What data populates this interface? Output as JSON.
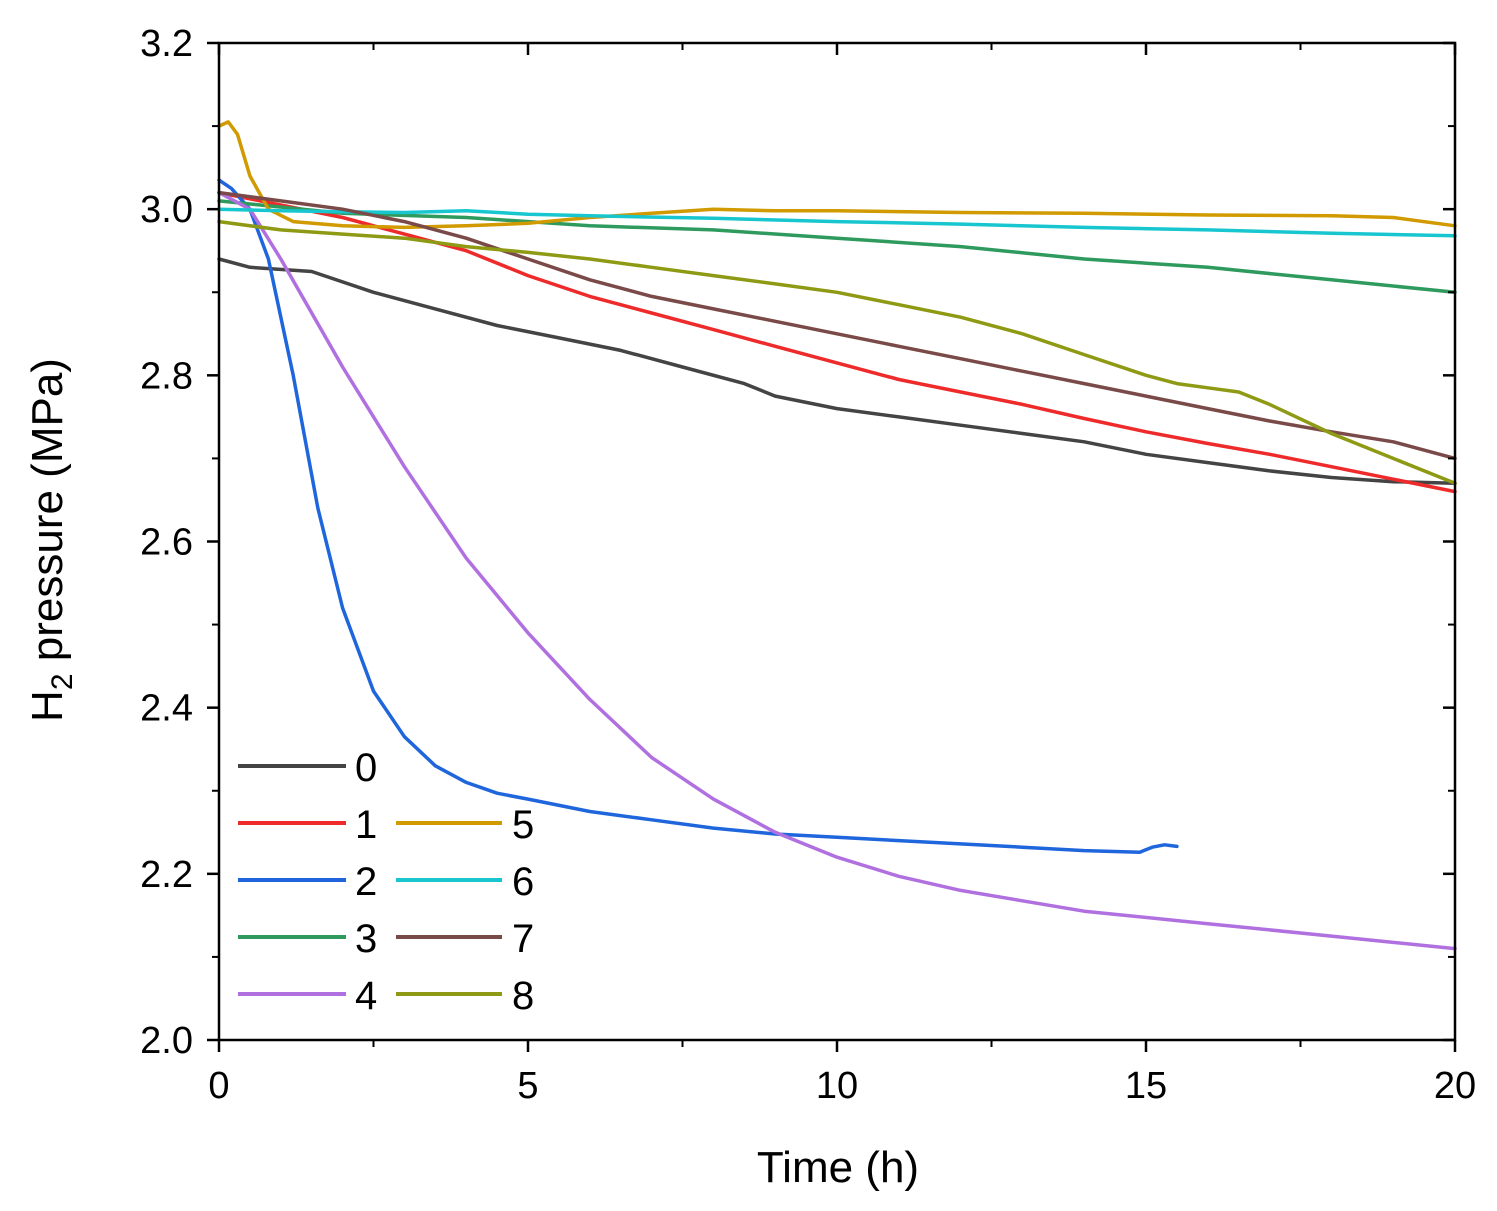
{
  "chart_data": {
    "type": "line",
    "xlabel": "Time (h)",
    "ylabel_main": "H",
    "ylabel_sub": "2",
    "ylabel_rest": " pressure (MPa)",
    "xlim": [
      0,
      20
    ],
    "ylim": [
      2.0,
      3.2
    ],
    "x_ticks": [
      0,
      5,
      10,
      15,
      20
    ],
    "x_tick_labels": [
      "0",
      "5",
      "10",
      "15",
      "20"
    ],
    "y_ticks": [
      2.0,
      2.2,
      2.4,
      2.6,
      2.8,
      3.0,
      3.2
    ],
    "y_tick_labels": [
      "2.0",
      "2.2",
      "2.4",
      "2.6",
      "2.8",
      "3.0",
      "3.2"
    ],
    "grid": false,
    "legend_position": "bottom-left",
    "series": [
      {
        "name": "0",
        "color": "#444444",
        "x": [
          0,
          0.5,
          1.5,
          2.5,
          3.5,
          4.5,
          5.5,
          6.5,
          7.5,
          8.5,
          9,
          10,
          11,
          12,
          13,
          14,
          15,
          16,
          17,
          18,
          19,
          20
        ],
        "y": [
          2.94,
          2.93,
          2.925,
          2.9,
          2.88,
          2.86,
          2.845,
          2.83,
          2.81,
          2.79,
          2.775,
          2.76,
          2.75,
          2.74,
          2.73,
          2.72,
          2.705,
          2.695,
          2.685,
          2.677,
          2.672,
          2.67
        ]
      },
      {
        "name": "1",
        "color": "#ee2a2a",
        "x": [
          0,
          1,
          2,
          3,
          4,
          5,
          6,
          7,
          8,
          9,
          10,
          11,
          12,
          13,
          14,
          15,
          16,
          17,
          18,
          19,
          20
        ],
        "y": [
          3.02,
          3.005,
          2.99,
          2.97,
          2.95,
          2.92,
          2.895,
          2.875,
          2.855,
          2.835,
          2.815,
          2.795,
          2.78,
          2.765,
          2.748,
          2.732,
          2.718,
          2.705,
          2.69,
          2.675,
          2.66
        ]
      },
      {
        "name": "2",
        "color": "#1f66dd",
        "x": [
          0,
          0.2,
          0.5,
          0.8,
          1.2,
          1.6,
          2.0,
          2.5,
          3.0,
          3.5,
          4.0,
          4.5,
          5.0,
          6.0,
          7.0,
          8.0,
          9.0,
          10.0,
          11.0,
          12.0,
          13.0,
          14.0,
          14.9,
          15.1,
          15.3,
          15.5
        ],
        "y": [
          3.035,
          3.025,
          3.0,
          2.94,
          2.8,
          2.64,
          2.52,
          2.42,
          2.365,
          2.33,
          2.31,
          2.297,
          2.29,
          2.275,
          2.265,
          2.255,
          2.248,
          2.244,
          2.24,
          2.236,
          2.232,
          2.228,
          2.226,
          2.232,
          2.235,
          2.233
        ]
      },
      {
        "name": "3",
        "color": "#2e9a5e",
        "x": [
          0,
          2,
          4,
          6,
          8,
          10,
          12,
          14,
          16,
          18,
          20
        ],
        "y": [
          3.01,
          2.995,
          2.99,
          2.98,
          2.975,
          2.965,
          2.955,
          2.94,
          2.93,
          2.915,
          2.9
        ]
      },
      {
        "name": "4",
        "color": "#b070e0",
        "x": [
          0,
          0.5,
          1,
          2,
          3,
          4,
          5,
          6,
          7,
          8,
          9,
          10,
          11,
          12,
          14,
          16,
          18,
          20
        ],
        "y": [
          3.02,
          3.0,
          2.94,
          2.81,
          2.69,
          2.58,
          2.49,
          2.41,
          2.34,
          2.29,
          2.25,
          2.22,
          2.197,
          2.18,
          2.155,
          2.14,
          2.125,
          2.11
        ]
      },
      {
        "name": "5",
        "color": "#d19a00",
        "x": [
          0,
          0.15,
          0.3,
          0.5,
          0.8,
          1.2,
          2,
          3,
          4,
          5,
          6,
          7,
          8,
          9,
          10,
          12,
          14,
          16,
          18,
          19,
          20
        ],
        "y": [
          3.1,
          3.105,
          3.09,
          3.04,
          3.0,
          2.985,
          2.98,
          2.978,
          2.98,
          2.983,
          2.99,
          2.995,
          3.0,
          2.998,
          2.998,
          2.996,
          2.995,
          2.993,
          2.992,
          2.99,
          2.98
        ]
      },
      {
        "name": "6",
        "color": "#17c6cf",
        "x": [
          0,
          1,
          2,
          3,
          4,
          5,
          6,
          8,
          10,
          12,
          14,
          16,
          18,
          20
        ],
        "y": [
          3.0,
          2.998,
          2.997,
          2.996,
          2.998,
          2.994,
          2.992,
          2.989,
          2.985,
          2.982,
          2.978,
          2.975,
          2.971,
          2.968
        ]
      },
      {
        "name": "7",
        "color": "#7a4a48",
        "x": [
          0,
          1,
          2,
          3,
          4,
          5,
          6,
          7,
          8,
          9,
          10,
          11,
          12,
          13,
          14,
          15,
          16,
          17,
          18,
          19,
          20
        ],
        "y": [
          3.02,
          3.01,
          3.0,
          2.985,
          2.965,
          2.94,
          2.915,
          2.895,
          2.88,
          2.865,
          2.85,
          2.835,
          2.82,
          2.805,
          2.79,
          2.775,
          2.76,
          2.745,
          2.732,
          2.72,
          2.7
        ]
      },
      {
        "name": "8",
        "color": "#8e9a14",
        "x": [
          0,
          1,
          2,
          3,
          4,
          5,
          6,
          7,
          8,
          9,
          10,
          11,
          12,
          13,
          14,
          15,
          15.5,
          16,
          16.5,
          17,
          18,
          19,
          20
        ],
        "y": [
          2.985,
          2.975,
          2.97,
          2.965,
          2.955,
          2.948,
          2.94,
          2.93,
          2.92,
          2.91,
          2.9,
          2.885,
          2.87,
          2.85,
          2.825,
          2.8,
          2.79,
          2.785,
          2.78,
          2.765,
          2.73,
          2.7,
          2.67
        ]
      }
    ],
    "legend": {
      "col1": [
        "0",
        "1",
        "2",
        "3",
        "4"
      ],
      "col2": [
        "",
        "5",
        "6",
        "7",
        "8"
      ]
    }
  }
}
